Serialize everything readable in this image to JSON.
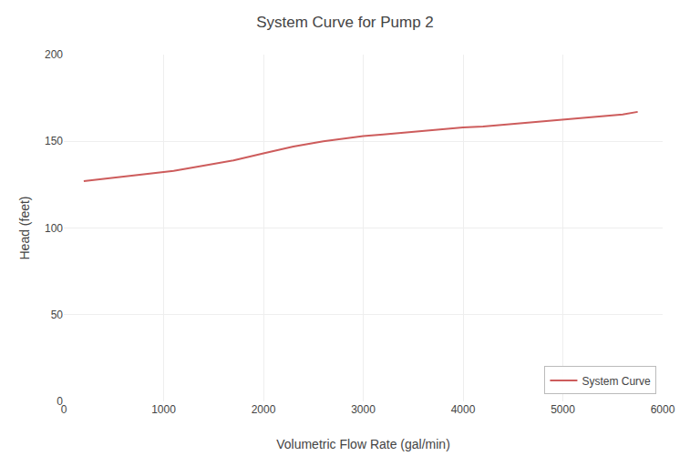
{
  "chart_data": {
    "type": "line",
    "title": "System Curve for Pump 2",
    "xlabel": "Volumetric Flow Rate (gal/min)",
    "ylabel": "Head (feet)",
    "x": [
      200,
      500,
      800,
      1100,
      1400,
      1700,
      2000,
      2300,
      2600,
      2800,
      3000,
      3200,
      3400,
      3600,
      3800,
      4000,
      4200,
      4400,
      4600,
      4800,
      5000,
      5200,
      5400,
      5600,
      5750
    ],
    "series": [
      {
        "name": "System Curve",
        "color": "#cd5c5c",
        "values": [
          127,
          129,
          131,
          133,
          136,
          139,
          143,
          147,
          150,
          151.5,
          153,
          154,
          155,
          156,
          157,
          158,
          158.5,
          159.5,
          160.5,
          161.5,
          162.5,
          163.5,
          164.5,
          165.5,
          167
        ]
      }
    ],
    "xlim": [
      0,
      6000
    ],
    "ylim": [
      0,
      200
    ],
    "xticks": [
      0,
      1000,
      2000,
      3000,
      4000,
      5000,
      6000
    ],
    "yticks": [
      0,
      50,
      100,
      150,
      200
    ],
    "grid": true,
    "legend": "lower right"
  }
}
